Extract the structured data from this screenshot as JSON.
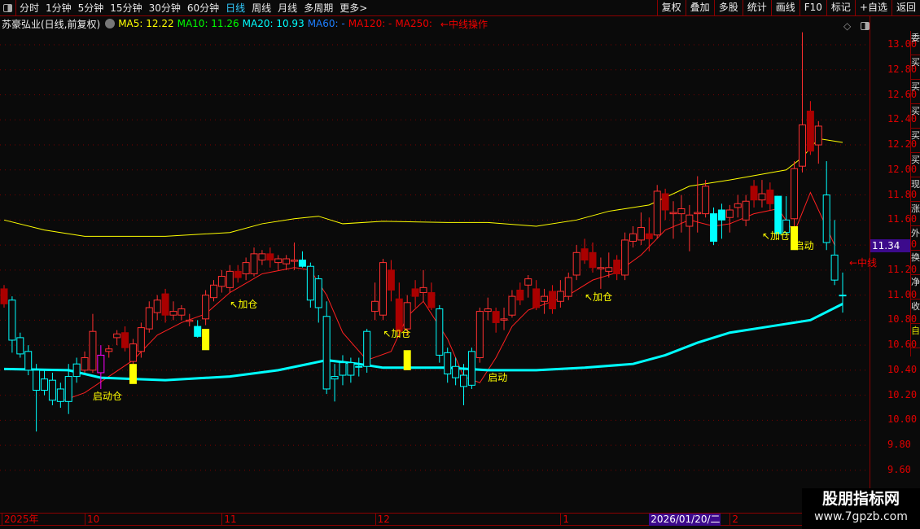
{
  "toolbar": {
    "periods": [
      "分时",
      "1分钟",
      "5分钟",
      "15分钟",
      "30分钟",
      "60分钟",
      "日线",
      "周线",
      "月线",
      "多周期",
      "更多>"
    ],
    "active": "日线",
    "right_buttons": [
      "复权",
      "叠加",
      "多股",
      "统计",
      "画线",
      "F10",
      "标记",
      "+自选",
      "返回"
    ]
  },
  "info": {
    "title": "苏豪弘业(日线,前复权)",
    "ma5": "MA5: 12.22",
    "ma10": "MA10: 11.26",
    "ma20": "MA20: 10.93",
    "ma60": "MA60: -",
    "ma120": "MA120: -",
    "ma250": "MA250:",
    "note": "←中线操作"
  },
  "colors": {
    "ma5": "#ffff00",
    "ma10": "#00ff00",
    "ma20": "#00ffff",
    "ma60": "#1e7fff",
    "ma120": "#ff2020",
    "up": "#ff3030",
    "down": "#00ffff",
    "signal": "#ffff00",
    "highlight": "#3c0a8c"
  },
  "price_axis": [
    "13.00",
    "12.80",
    "12.60",
    "12.40",
    "12.20",
    "12.00",
    "11.80",
    "11.60",
    "11.40",
    "11.20",
    "11.00",
    "10.80",
    "10.60",
    "10.40",
    "10.20",
    "10.00",
    "9.80",
    "9.60"
  ],
  "current_price": "11.34",
  "date_axis": [
    {
      "label": "2025年",
      "i": 0
    },
    {
      "label": "10",
      "i": 10
    },
    {
      "label": "11",
      "i": 27
    },
    {
      "label": "12",
      "i": 46
    },
    {
      "label": "1",
      "i": 69
    },
    {
      "label": "2026/01/20/二",
      "i": 80,
      "highlight": true
    },
    {
      "label": "2",
      "i": 90
    }
  ],
  "watermark": {
    "title": "股朋指标网",
    "url": "www.7gpzb.com"
  },
  "chart_data": {
    "type": "candlestick",
    "ylim": [
      9.5,
      13.1
    ],
    "candles": [
      [
        11.05,
        11.08,
        10.9,
        10.93,
        "R"
      ],
      [
        10.96,
        10.99,
        10.54,
        10.64,
        "c"
      ],
      [
        10.66,
        10.7,
        10.5,
        10.53,
        "c"
      ],
      [
        10.55,
        10.6,
        10.36,
        10.4,
        "c"
      ],
      [
        10.4,
        10.45,
        9.91,
        10.24,
        "c"
      ],
      [
        10.33,
        10.4,
        10.2,
        10.24,
        "c"
      ],
      [
        10.32,
        10.38,
        10.12,
        10.16,
        "c"
      ],
      [
        10.25,
        10.3,
        10.1,
        10.15,
        "c"
      ],
      [
        10.35,
        10.45,
        10.05,
        10.15,
        "c"
      ],
      [
        10.45,
        10.5,
        10.3,
        10.35,
        "c"
      ],
      [
        10.4,
        10.55,
        10.38,
        10.5,
        "r"
      ],
      [
        10.4,
        10.85,
        10.38,
        10.71,
        "r"
      ],
      [
        10.38,
        10.6,
        10.25,
        10.52,
        "m"
      ],
      [
        10.55,
        10.6,
        10.5,
        10.57,
        "r"
      ],
      [
        10.66,
        10.72,
        10.6,
        10.69,
        "r"
      ],
      [
        10.7,
        10.75,
        10.55,
        10.58,
        "R"
      ],
      [
        10.47,
        10.65,
        10.44,
        10.61,
        "r"
      ],
      [
        10.55,
        10.78,
        10.5,
        10.74,
        "r"
      ],
      [
        10.73,
        10.95,
        10.7,
        10.9,
        "r"
      ],
      [
        10.86,
        11.0,
        10.8,
        10.96,
        "r"
      ],
      [
        11.01,
        11.05,
        10.78,
        10.84,
        "R"
      ],
      [
        10.84,
        10.95,
        10.8,
        10.87,
        "r"
      ],
      [
        10.84,
        10.92,
        10.8,
        10.89,
        "r"
      ],
      [
        10.79,
        10.85,
        10.75,
        10.8,
        "r"
      ],
      [
        10.75,
        10.8,
        10.66,
        10.67,
        "C"
      ],
      [
        10.81,
        11.04,
        10.76,
        11.0,
        "r"
      ],
      [
        10.98,
        11.12,
        10.95,
        11.08,
        "r"
      ],
      [
        11.07,
        11.2,
        11.02,
        11.15,
        "r"
      ],
      [
        11.06,
        11.24,
        11.02,
        11.19,
        "r"
      ],
      [
        11.19,
        11.24,
        11.1,
        11.14,
        "R"
      ],
      [
        11.17,
        11.3,
        11.12,
        11.26,
        "r"
      ],
      [
        11.17,
        11.38,
        11.15,
        11.33,
        "r"
      ],
      [
        11.28,
        11.36,
        11.24,
        11.33,
        "r"
      ],
      [
        11.33,
        11.38,
        11.22,
        11.28,
        "R"
      ],
      [
        11.26,
        11.32,
        11.2,
        11.29,
        "r"
      ],
      [
        11.25,
        11.32,
        11.2,
        11.29,
        "r"
      ],
      [
        11.27,
        11.42,
        11.2,
        11.28,
        "r"
      ],
      [
        11.28,
        11.35,
        11.22,
        11.23,
        "C"
      ],
      [
        11.23,
        11.26,
        10.9,
        10.96,
        "c"
      ],
      [
        11.13,
        11.16,
        10.78,
        10.9,
        "c"
      ],
      [
        10.83,
        10.95,
        10.21,
        10.25,
        "c"
      ],
      [
        10.35,
        10.45,
        10.15,
        10.33,
        "c"
      ],
      [
        10.46,
        10.52,
        10.28,
        10.36,
        "c"
      ],
      [
        10.46,
        10.5,
        10.3,
        10.36,
        "c"
      ],
      [
        10.43,
        10.5,
        10.35,
        10.43,
        "c"
      ],
      [
        10.71,
        10.73,
        10.38,
        10.43,
        "c"
      ],
      [
        10.87,
        11.1,
        10.8,
        10.95,
        "r"
      ],
      [
        10.84,
        11.29,
        10.8,
        11.26,
        "r"
      ],
      [
        11.2,
        11.28,
        10.95,
        11.04,
        "R"
      ],
      [
        10.97,
        11.1,
        10.66,
        10.71,
        "R"
      ],
      [
        10.73,
        11.0,
        10.68,
        10.94,
        "r"
      ],
      [
        11.05,
        11.12,
        10.9,
        10.99,
        "R"
      ],
      [
        11.02,
        11.2,
        10.95,
        11.06,
        "r"
      ],
      [
        11.02,
        11.1,
        10.88,
        10.9,
        "R"
      ],
      [
        10.89,
        10.92,
        10.46,
        10.52,
        "c"
      ],
      [
        10.54,
        10.58,
        10.3,
        10.37,
        "c"
      ],
      [
        10.43,
        10.5,
        10.28,
        10.34,
        "c"
      ],
      [
        10.36,
        10.45,
        10.12,
        10.27,
        "c"
      ],
      [
        10.28,
        10.58,
        10.25,
        10.55,
        "c"
      ],
      [
        10.5,
        10.9,
        10.46,
        10.87,
        "r"
      ],
      [
        10.87,
        10.98,
        10.8,
        10.89,
        "r"
      ],
      [
        10.87,
        10.9,
        10.7,
        10.78,
        "R"
      ],
      [
        10.8,
        10.9,
        10.72,
        10.81,
        "r"
      ],
      [
        10.84,
        11.04,
        10.82,
        10.99,
        "r"
      ],
      [
        11.04,
        11.1,
        10.92,
        10.96,
        "R"
      ],
      [
        11.08,
        11.16,
        10.98,
        11.13,
        "r"
      ],
      [
        11.05,
        11.12,
        10.88,
        10.9,
        "R"
      ],
      [
        10.95,
        11.05,
        10.85,
        10.99,
        "r"
      ],
      [
        11.03,
        11.08,
        10.85,
        10.89,
        "R"
      ],
      [
        10.95,
        11.12,
        10.9,
        11.03,
        "r"
      ],
      [
        10.99,
        11.18,
        10.96,
        11.14,
        "r"
      ],
      [
        11.16,
        11.4,
        11.12,
        11.34,
        "r"
      ],
      [
        11.37,
        11.45,
        11.25,
        11.28,
        "R"
      ],
      [
        11.34,
        11.42,
        11.18,
        11.22,
        "R"
      ],
      [
        11.21,
        11.3,
        11.05,
        11.22,
        "r"
      ],
      [
        11.19,
        11.34,
        11.14,
        11.22,
        "r"
      ],
      [
        11.28,
        11.32,
        11.12,
        11.17,
        "R"
      ],
      [
        11.16,
        11.5,
        11.12,
        11.44,
        "r"
      ],
      [
        11.43,
        11.55,
        11.38,
        11.49,
        "r"
      ],
      [
        11.44,
        11.66,
        11.4,
        11.54,
        "r"
      ],
      [
        11.49,
        11.62,
        11.35,
        11.45,
        "R"
      ],
      [
        11.48,
        11.88,
        11.45,
        11.83,
        "r"
      ],
      [
        11.81,
        11.85,
        11.6,
        11.68,
        "R"
      ],
      [
        11.65,
        11.75,
        11.45,
        11.66,
        "r"
      ],
      [
        11.65,
        11.8,
        11.5,
        11.69,
        "r"
      ],
      [
        11.55,
        11.72,
        11.35,
        11.64,
        "r"
      ],
      [
        11.65,
        11.95,
        11.5,
        11.66,
        "r"
      ],
      [
        11.65,
        11.92,
        11.62,
        11.87,
        "r"
      ],
      [
        11.65,
        11.7,
        11.4,
        11.43,
        "C"
      ],
      [
        11.68,
        11.73,
        11.45,
        11.6,
        "C"
      ],
      [
        11.62,
        11.72,
        11.5,
        11.68,
        "r"
      ],
      [
        11.7,
        11.8,
        11.62,
        11.73,
        "r"
      ],
      [
        11.6,
        11.8,
        11.55,
        11.75,
        "r"
      ],
      [
        11.87,
        11.92,
        11.7,
        11.76,
        "R"
      ],
      [
        11.76,
        11.92,
        11.7,
        11.81,
        "r"
      ],
      [
        11.84,
        11.9,
        11.68,
        11.73,
        "R"
      ],
      [
        11.79,
        11.79,
        11.49,
        11.49,
        "C"
      ],
      [
        11.5,
        11.79,
        11.48,
        11.6,
        "c"
      ],
      [
        11.61,
        12.07,
        11.55,
        12.01,
        "r"
      ],
      [
        12.03,
        13.1,
        11.98,
        12.36,
        "r"
      ],
      [
        12.47,
        12.55,
        12.12,
        12.15,
        "R"
      ],
      [
        12.2,
        12.39,
        12.05,
        12.35,
        "r"
      ],
      [
        11.8,
        12.07,
        11.36,
        11.42,
        "c"
      ],
      [
        11.32,
        11.6,
        11.08,
        11.12,
        "c"
      ],
      [
        11.0,
        11.18,
        10.86,
        11.0,
        "c"
      ]
    ],
    "lines": [
      {
        "name": "upper",
        "color": "#ffff00",
        "points": [
          [
            0,
            11.6
          ],
          [
            5,
            11.52
          ],
          [
            10,
            11.47
          ],
          [
            20,
            11.47
          ],
          [
            28,
            11.5
          ],
          [
            32,
            11.57
          ],
          [
            36,
            11.61
          ],
          [
            39,
            11.63
          ],
          [
            42,
            11.57
          ],
          [
            47,
            11.59
          ],
          [
            55,
            11.58
          ],
          [
            60,
            11.58
          ],
          [
            66,
            11.55
          ],
          [
            71,
            11.6
          ],
          [
            75,
            11.67
          ],
          [
            80,
            11.72
          ],
          [
            85,
            11.87
          ],
          [
            90,
            11.92
          ],
          [
            97,
            12.0
          ],
          [
            99,
            12.1
          ],
          [
            101,
            12.25
          ],
          [
            104,
            12.22
          ]
        ]
      },
      {
        "name": "mid",
        "color": "#ff2020",
        "points": [
          [
            7,
            10.15
          ],
          [
            10,
            10.22
          ],
          [
            13,
            10.35
          ],
          [
            16,
            10.48
          ],
          [
            19,
            10.68
          ],
          [
            22,
            10.78
          ],
          [
            25,
            10.85
          ],
          [
            28,
            11.02
          ],
          [
            32,
            11.17
          ],
          [
            36,
            11.22
          ],
          [
            38,
            11.2
          ],
          [
            40,
            11.0
          ],
          [
            42,
            10.7
          ],
          [
            45,
            10.48
          ],
          [
            48,
            10.55
          ],
          [
            50,
            10.83
          ],
          [
            52,
            10.95
          ],
          [
            55,
            10.65
          ],
          [
            57,
            10.35
          ],
          [
            59,
            10.3
          ],
          [
            61,
            10.5
          ],
          [
            63,
            10.75
          ],
          [
            65,
            10.88
          ],
          [
            68,
            10.95
          ],
          [
            70,
            11.0
          ],
          [
            73,
            11.12
          ],
          [
            76,
            11.18
          ],
          [
            79,
            11.32
          ],
          [
            82,
            11.52
          ],
          [
            85,
            11.6
          ],
          [
            88,
            11.55
          ],
          [
            90,
            11.57
          ],
          [
            93,
            11.65
          ],
          [
            96,
            11.69
          ],
          [
            98,
            11.5
          ],
          [
            100,
            11.82
          ],
          [
            103,
            11.4
          ]
        ]
      },
      {
        "name": "base",
        "color": "#00ffff",
        "points": [
          [
            0,
            10.41
          ],
          [
            8,
            10.4
          ],
          [
            12,
            10.34
          ],
          [
            20,
            10.32
          ],
          [
            28,
            10.35
          ],
          [
            34,
            10.4
          ],
          [
            40,
            10.48
          ],
          [
            44,
            10.45
          ],
          [
            47,
            10.42
          ],
          [
            55,
            10.42
          ],
          [
            60,
            10.4
          ],
          [
            66,
            10.4
          ],
          [
            72,
            10.42
          ],
          [
            78,
            10.45
          ],
          [
            82,
            10.52
          ],
          [
            86,
            10.62
          ],
          [
            90,
            10.7
          ],
          [
            95,
            10.75
          ],
          [
            100,
            10.8
          ],
          [
            104,
            10.93
          ]
        ]
      }
    ],
    "signal_bars": [
      {
        "i": 16,
        "top": 10.45,
        "bottom": 10.29
      },
      {
        "i": 25,
        "top": 10.73,
        "bottom": 10.56
      },
      {
        "i": 50,
        "top": 10.56,
        "bottom": 10.4
      },
      {
        "i": 98,
        "top": 11.55,
        "bottom": 11.36
      }
    ],
    "signal_labels": [
      {
        "text": "启动仓",
        "i": 11,
        "price": 10.2
      },
      {
        "text": "↖加仓",
        "i": 28,
        "price": 10.93
      },
      {
        "text": "↖加仓",
        "i": 47,
        "price": 10.7
      },
      {
        "text": "启动",
        "i": 60,
        "price": 10.35
      },
      {
        "text": "↖加仓",
        "i": 72,
        "price": 10.99
      },
      {
        "text": "↖加仓",
        "i": 94,
        "price": 11.48
      },
      {
        "text": "启动",
        "i": 98,
        "price": 11.4
      }
    ],
    "right_note": "←中线"
  }
}
